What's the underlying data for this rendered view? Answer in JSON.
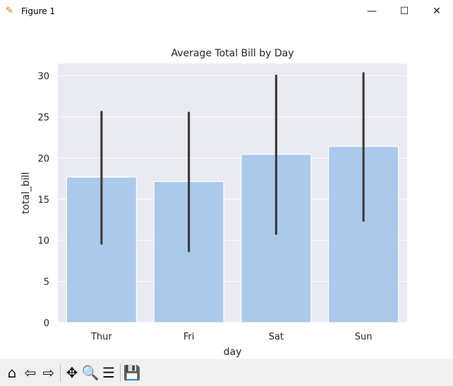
{
  "window": {
    "title": "Figure 1",
    "minimize": "—",
    "maximize": "☐",
    "close": "✕"
  },
  "toolbar": [
    {
      "name": "home-icon",
      "glyph": "⌂"
    },
    {
      "name": "back-arrow-icon",
      "glyph": "⇦"
    },
    {
      "name": "forward-arrow-icon",
      "glyph": "⇨"
    },
    {
      "sep": true
    },
    {
      "name": "pan-icon",
      "glyph": "✥"
    },
    {
      "name": "zoom-icon",
      "glyph": "🔍"
    },
    {
      "name": "configure-subplots-icon",
      "glyph": "☰"
    },
    {
      "sep": true
    },
    {
      "name": "save-icon",
      "glyph": "💾"
    }
  ],
  "colors": {
    "bar": "#abc9ea",
    "axes_bg": "#eaeaf2",
    "errbar": "#3d3d3d",
    "grid": "#ffffff"
  },
  "chart_data": {
    "type": "bar",
    "title": "Average Total Bill by Day",
    "xlabel": "day",
    "ylabel": "total_bill",
    "categories": [
      "Thur",
      "Fri",
      "Sat",
      "Sun"
    ],
    "values": [
      17.68,
      17.15,
      20.44,
      21.41
    ],
    "ci_low": [
      9.6,
      8.7,
      10.8,
      12.4
    ],
    "ci_high": [
      25.6,
      25.5,
      30.0,
      30.3
    ],
    "yticks": [
      0,
      5,
      10,
      15,
      20,
      25,
      30
    ],
    "ylim": [
      0,
      31.5
    ],
    "grid": true,
    "legend": "none"
  }
}
